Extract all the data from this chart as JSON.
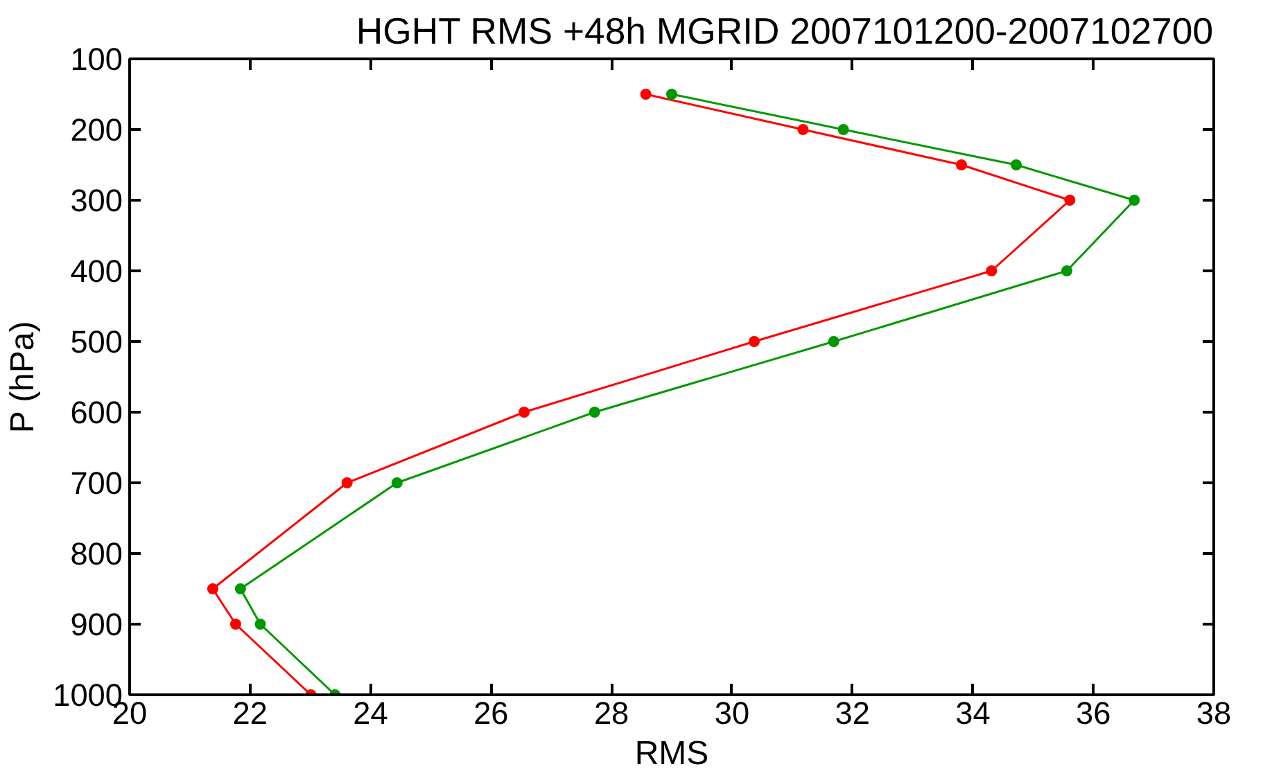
{
  "chart_data": {
    "type": "line",
    "title": "HGHT RMS +48h MGRID 2007101200-2007102700",
    "xlabel": "RMS",
    "ylabel": "P (hPa)",
    "x": [
      150,
      200,
      250,
      300,
      400,
      500,
      600,
      700,
      850,
      900,
      1000
    ],
    "series": [
      {
        "color": "#ff0000",
        "values": [
          28.57,
          31.18,
          33.81,
          35.61,
          34.31,
          30.37,
          26.55,
          23.61,
          21.38,
          21.76,
          23.01
        ]
      },
      {
        "color": "#009900",
        "values": [
          29.0,
          31.85,
          34.72,
          36.68,
          35.56,
          31.69,
          27.72,
          24.44,
          21.84,
          22.17,
          23.41
        ]
      }
    ],
    "orientation": "horizontal",
    "xlim": [
      20,
      38
    ],
    "xticks": [
      20,
      22,
      24,
      26,
      28,
      30,
      32,
      34,
      36,
      38
    ],
    "ylim": [
      1000,
      100
    ],
    "yticks": [
      100,
      200,
      300,
      400,
      500,
      600,
      700,
      800,
      900,
      1000
    ],
    "grid": false,
    "marker": "circle",
    "line_style": "solid"
  }
}
